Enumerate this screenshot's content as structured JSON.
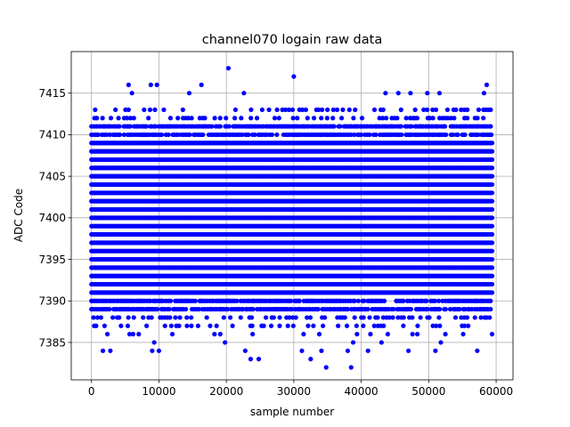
{
  "chart_data": {
    "type": "scatter",
    "title": "channel070 logain raw data",
    "xlabel": "sample number",
    "ylabel": "ADC Code",
    "xlim": [
      -3000,
      62500
    ],
    "ylim": [
      7380.5,
      7420.0
    ],
    "xticks": [
      0,
      10000,
      20000,
      30000,
      40000,
      50000,
      60000
    ],
    "yticks": [
      7385,
      7390,
      7395,
      7400,
      7405,
      7410,
      7415
    ],
    "grid": true,
    "marker_color": "#0000ff",
    "series": [
      {
        "x_range": [
          0,
          59400
        ],
        "dense_y": [
          7391,
          7392,
          7393,
          7394,
          7395,
          7396,
          7397,
          7398,
          7399,
          7400,
          7401,
          7402,
          7403,
          7404,
          7405,
          7406,
          7407,
          7408,
          7409
        ],
        "semi_dense_y": [
          7389,
          7390,
          7410,
          7411
        ],
        "sparse_y": [
          7388,
          7387,
          7386,
          7412,
          7413
        ],
        "outliers": [
          [
            1700,
            7384
          ],
          [
            2800,
            7384
          ],
          [
            9000,
            7384
          ],
          [
            10000,
            7384
          ],
          [
            9300,
            7385
          ],
          [
            19800,
            7385
          ],
          [
            22800,
            7384
          ],
          [
            23600,
            7383
          ],
          [
            24800,
            7383
          ],
          [
            31200,
            7384
          ],
          [
            32500,
            7383
          ],
          [
            34100,
            7384
          ],
          [
            34800,
            7382
          ],
          [
            38000,
            7384
          ],
          [
            38500,
            7382
          ],
          [
            38800,
            7385
          ],
          [
            41000,
            7384
          ],
          [
            43000,
            7385
          ],
          [
            47000,
            7384
          ],
          [
            51000,
            7384
          ],
          [
            51800,
            7385
          ],
          [
            57200,
            7384
          ],
          [
            5500,
            7416
          ],
          [
            6000,
            7415
          ],
          [
            8800,
            7416
          ],
          [
            9700,
            7416
          ],
          [
            14500,
            7415
          ],
          [
            16300,
            7416
          ],
          [
            20300,
            7418
          ],
          [
            22600,
            7415
          ],
          [
            30000,
            7417
          ],
          [
            43600,
            7415
          ],
          [
            45500,
            7415
          ],
          [
            47300,
            7415
          ],
          [
            49800,
            7415
          ],
          [
            51600,
            7415
          ],
          [
            58600,
            7416
          ],
          [
            58200,
            7415
          ]
        ]
      }
    ]
  }
}
